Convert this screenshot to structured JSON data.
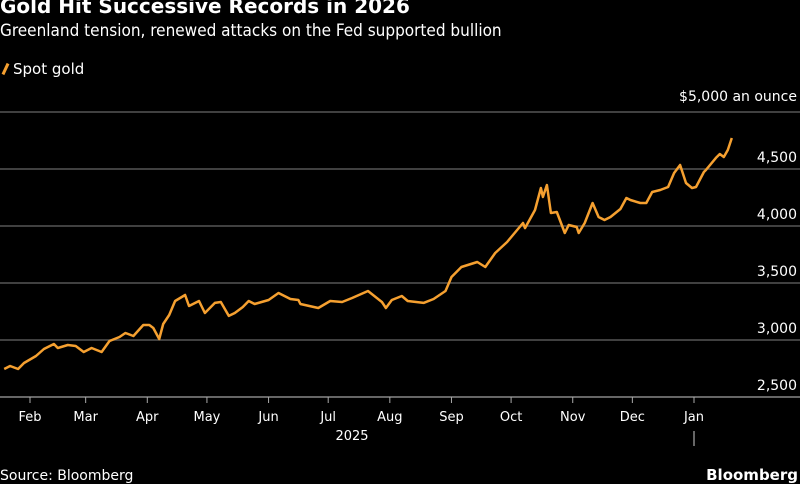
{
  "header": {
    "title": "Gold Hit Successive Records in 2026",
    "subtitle": "Greenland tension, renewed attacks on the Fed supported bullion"
  },
  "footer": {
    "source": "Source: Bloomberg",
    "brand": "Bloomberg"
  },
  "chart_data": {
    "type": "line",
    "title": "Gold Hit Successive Records in 2026",
    "subtitle": "Greenland tension, renewed attacks on the Fed supported bullion",
    "unit_label": "$5,000 an ounce",
    "xlabel": "",
    "ylabel": "",
    "x_unit": "day of 2025 (Jan 1 = 1; values > 365 are in Jan 2026)",
    "ylim": [
      2500,
      5000
    ],
    "yticks": [
      5000,
      4500,
      4000,
      3500,
      3000,
      2500
    ],
    "ytick_labels": [
      "$5,000 an ounce",
      "4,500",
      "4,000",
      "3,500",
      "3,000",
      "2,500"
    ],
    "xticks": [
      {
        "label": "Feb",
        "day": 32
      },
      {
        "label": "Mar",
        "day": 60
      },
      {
        "label": "Apr",
        "day": 91
      },
      {
        "label": "May",
        "day": 121
      },
      {
        "label": "Jun",
        "day": 152
      },
      {
        "label": "Jul",
        "day": 182
      },
      {
        "label": "Aug",
        "day": 213
      },
      {
        "label": "Sep",
        "day": 244
      },
      {
        "label": "Oct",
        "day": 274
      },
      {
        "label": "Nov",
        "day": 305
      },
      {
        "label": "Dec",
        "day": 335
      },
      {
        "label": "Jan",
        "day": 366
      }
    ],
    "year_label": "2025",
    "grid": true,
    "legend_placement": "top-left",
    "colors": {
      "line": "#f5a030",
      "grid": "#555555"
    },
    "series": [
      {
        "name": "Spot gold",
        "points": [
          [
            19,
            2746
          ],
          [
            22,
            2772
          ],
          [
            26,
            2746
          ],
          [
            29,
            2798
          ],
          [
            35,
            2860
          ],
          [
            39,
            2921
          ],
          [
            44,
            2965
          ],
          [
            46,
            2930
          ],
          [
            51,
            2956
          ],
          [
            55,
            2947
          ],
          [
            59,
            2895
          ],
          [
            63,
            2930
          ],
          [
            68,
            2895
          ],
          [
            72,
            2991
          ],
          [
            77,
            3026
          ],
          [
            80,
            3061
          ],
          [
            84,
            3035
          ],
          [
            89,
            3132
          ],
          [
            92,
            3132
          ],
          [
            94,
            3105
          ],
          [
            97,
            3009
          ],
          [
            99,
            3140
          ],
          [
            102,
            3219
          ],
          [
            105,
            3342
          ],
          [
            110,
            3395
          ],
          [
            112,
            3298
          ],
          [
            117,
            3342
          ],
          [
            120,
            3237
          ],
          [
            125,
            3325
          ],
          [
            128,
            3333
          ],
          [
            132,
            3211
          ],
          [
            135,
            3237
          ],
          [
            139,
            3289
          ],
          [
            142,
            3342
          ],
          [
            145,
            3316
          ],
          [
            152,
            3351
          ],
          [
            157,
            3412
          ],
          [
            163,
            3360
          ],
          [
            167,
            3351
          ],
          [
            168,
            3316
          ],
          [
            177,
            3281
          ],
          [
            183,
            3342
          ],
          [
            189,
            3333
          ],
          [
            194,
            3368
          ],
          [
            202,
            3430
          ],
          [
            209,
            3333
          ],
          [
            211,
            3281
          ],
          [
            214,
            3351
          ],
          [
            219,
            3386
          ],
          [
            222,
            3342
          ],
          [
            230,
            3325
          ],
          [
            235,
            3360
          ],
          [
            241,
            3430
          ],
          [
            244,
            3553
          ],
          [
            249,
            3640
          ],
          [
            257,
            3684
          ],
          [
            261,
            3640
          ],
          [
            266,
            3763
          ],
          [
            272,
            3860
          ],
          [
            280,
            4026
          ],
          [
            281,
            3982
          ],
          [
            286,
            4140
          ],
          [
            289,
            4333
          ],
          [
            290,
            4254
          ],
          [
            292,
            4360
          ],
          [
            294,
            4114
          ],
          [
            297,
            4123
          ],
          [
            301,
            3939
          ],
          [
            303,
            4009
          ],
          [
            307,
            3991
          ],
          [
            308,
            3939
          ],
          [
            311,
            4026
          ],
          [
            315,
            4202
          ],
          [
            318,
            4079
          ],
          [
            321,
            4053
          ],
          [
            324,
            4079
          ],
          [
            329,
            4149
          ],
          [
            332,
            4246
          ],
          [
            334,
            4228
          ],
          [
            339,
            4202
          ],
          [
            342,
            4202
          ],
          [
            345,
            4298
          ],
          [
            349,
            4316
          ],
          [
            353,
            4342
          ],
          [
            356,
            4465
          ],
          [
            359,
            4535
          ],
          [
            362,
            4377
          ],
          [
            365,
            4333
          ],
          [
            367,
            4342
          ],
          [
            371,
            4474
          ],
          [
            372,
            4491
          ],
          [
            377,
            4597
          ],
          [
            379,
            4632
          ],
          [
            381,
            4605
          ],
          [
            383,
            4667
          ],
          [
            385,
            4772
          ]
        ]
      }
    ]
  }
}
